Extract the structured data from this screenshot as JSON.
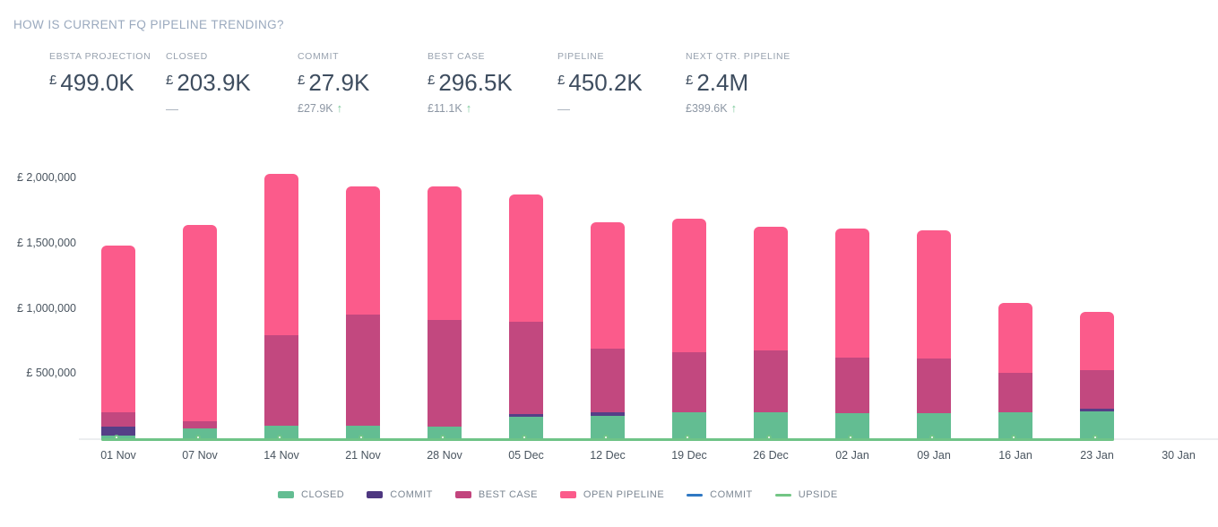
{
  "title": "HOW IS CURRENT FQ PIPELINE TRENDING?",
  "kpis": [
    {
      "label": "EBSTA PROJECTION",
      "currency": "£",
      "value": "499.0K",
      "delta": "",
      "delta_dir": "none"
    },
    {
      "label": "CLOSED",
      "currency": "£",
      "value": "203.9K",
      "delta": "—",
      "delta_dir": "flat"
    },
    {
      "label": "COMMIT",
      "currency": "£",
      "value": "27.9K",
      "delta": "£27.9K",
      "delta_dir": "up"
    },
    {
      "label": "BEST CASE",
      "currency": "£",
      "value": "296.5K",
      "delta": "£11.1K",
      "delta_dir": "up"
    },
    {
      "label": "PIPELINE",
      "currency": "£",
      "value": "450.2K",
      "delta": "—",
      "delta_dir": "flat"
    },
    {
      "label": "NEXT QTR. PIPELINE",
      "currency": "£",
      "value": "2.4M",
      "delta": "£399.6K",
      "delta_dir": "up"
    }
  ],
  "chart_data": {
    "type": "bar",
    "stacked": true,
    "grid": false,
    "legend_position": "bottom",
    "categories": [
      "01 Nov",
      "07 Nov",
      "14 Nov",
      "21 Nov",
      "28 Nov",
      "05 Dec",
      "12 Dec",
      "19 Dec",
      "26 Dec",
      "02 Jan",
      "09 Jan",
      "16 Jan",
      "23 Jan",
      "30 Jan"
    ],
    "series": [
      {
        "name": "CLOSED",
        "color": "#63BD92",
        "values": [
          25000,
          85000,
          100000,
          100000,
          95000,
          172000,
          179000,
          205000,
          205000,
          202000,
          200000,
          207000,
          214000,
          0
        ]
      },
      {
        "name": "COMMIT",
        "color": "#553F87",
        "values": [
          70000,
          0,
          0,
          0,
          0,
          23000,
          28000,
          0,
          0,
          0,
          0,
          0,
          20000,
          0
        ]
      },
      {
        "name": "BEST CASE",
        "color": "#C2487F",
        "values": [
          110000,
          55000,
          695000,
          855000,
          820000,
          705000,
          487000,
          460000,
          475000,
          423000,
          418000,
          303000,
          292000,
          0
        ]
      },
      {
        "name": "OPEN PIPELINE",
        "color": "#FB5B8B",
        "values": [
          1280000,
          1505000,
          1241000,
          985000,
          1025000,
          978000,
          968000,
          1029000,
          947000,
          991000,
          982000,
          538000,
          451000,
          0
        ]
      }
    ],
    "line_series": [
      {
        "name": "COMMIT",
        "color": "#2F78C3",
        "values": []
      },
      {
        "name": "UPSIDE",
        "color": "#6FC487",
        "values": [
          0,
          0,
          0,
          0,
          0,
          0,
          0,
          0,
          0,
          0,
          0,
          0,
          0
        ]
      }
    ],
    "yticks": [
      500000,
      1000000,
      1500000,
      2000000
    ],
    "ytick_labels": [
      "£ 500,000",
      "£ 1,000,000",
      "£ 1,500,000",
      "£ 2,000,000"
    ],
    "ylim": [
      0,
      2070000
    ],
    "currency": "£"
  },
  "legend": {
    "items": [
      {
        "label": "CLOSED",
        "color": "#63BD92",
        "shape": "rect"
      },
      {
        "label": "COMMIT",
        "color": "#4E3780",
        "shape": "rect"
      },
      {
        "label": "BEST CASE",
        "color": "#C2447D",
        "shape": "rect"
      },
      {
        "label": "OPEN PIPELINE",
        "color": "#FB5B8B",
        "shape": "rect"
      },
      {
        "label": "COMMIT",
        "color": "#2F78C3",
        "shape": "line"
      },
      {
        "label": "UPSIDE",
        "color": "#72C584",
        "shape": "line"
      }
    ]
  }
}
